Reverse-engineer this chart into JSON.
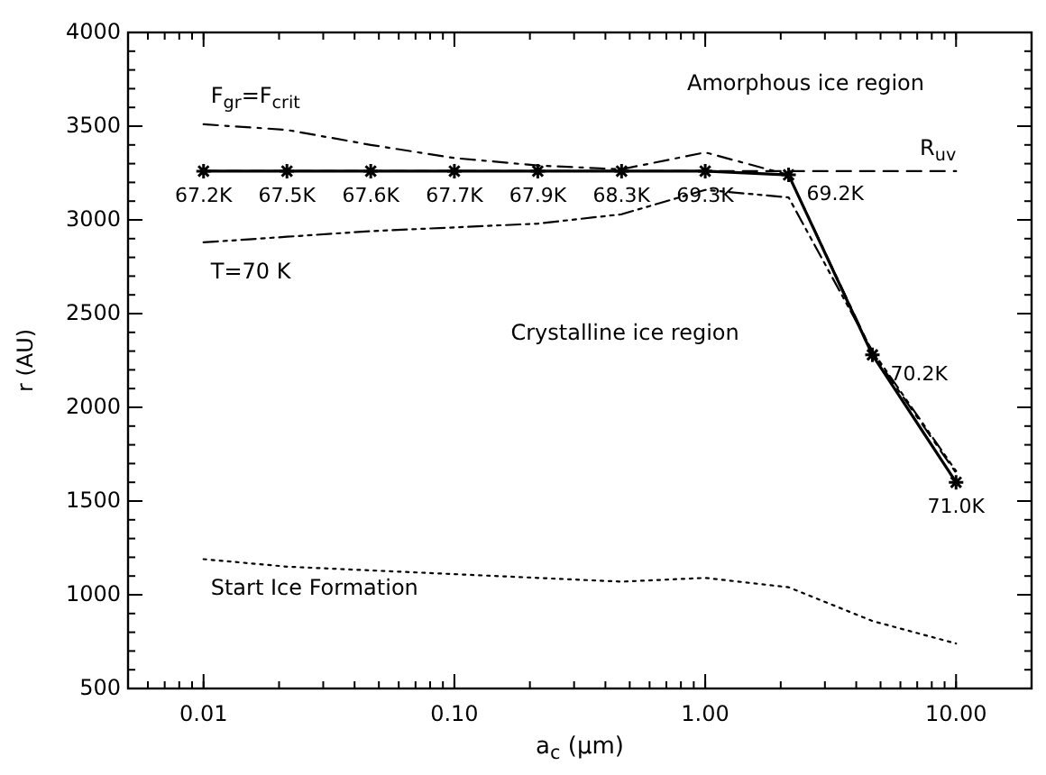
{
  "chart_data": {
    "type": "line",
    "xlabel": "a$_{c}$ (μm)",
    "ylabel": "r (AU)",
    "log": "x",
    "xlim": [
      0.005,
      20
    ],
    "xticks": [
      {
        "value": 0.01,
        "label": "0.01"
      },
      {
        "value": 0.1,
        "label": "0.10"
      },
      {
        "value": 1,
        "label": "1.00"
      },
      {
        "value": 10,
        "label": "10.00"
      }
    ],
    "ylim": [
      500,
      4000
    ],
    "yticks": [
      500,
      1000,
      1500,
      2000,
      2500,
      3000,
      3500,
      4000
    ],
    "grid": false,
    "x": [
      0.01,
      0.0215,
      0.0464,
      0.1,
      0.215,
      0.464,
      1,
      2.15,
      4.64,
      10
    ],
    "series": [
      {
        "color": "#000000",
        "line_style": "solid",
        "marker": "cross",
        "values": [
          3260,
          3260,
          3260,
          3260,
          3260,
          3260,
          3260,
          3240,
          2280,
          1600
        ]
      },
      {
        "name": "R$_{uv}$",
        "color": "#000000",
        "line_style": "dashed",
        "marker": "none",
        "values": [
          3260,
          3260,
          3260,
          3260,
          3260,
          3260,
          3260,
          3260,
          3260,
          3260
        ]
      },
      {
        "name": "F$_{gr}$=F$_{crit}$",
        "color": "#000000",
        "line_style": "dashdot",
        "marker": "none",
        "values": [
          3510,
          3480,
          3400,
          3330,
          3290,
          3270,
          3360,
          3240,
          2290,
          1650
        ]
      },
      {
        "name": "T=70 K",
        "color": "#000000",
        "line_style": "dashdotdot",
        "marker": "none",
        "values": [
          2880,
          2910,
          2940,
          2960,
          2980,
          3030,
          3160,
          3120,
          2300,
          1660
        ]
      },
      {
        "name": "Start Ice Formation",
        "color": "#000000",
        "line_style": "dotted",
        "marker": "none",
        "values": [
          1190,
          1150,
          1130,
          1110,
          1090,
          1070,
          1090,
          1040,
          860,
          740
        ]
      }
    ],
    "annotations": [
      "Amorphous ice region",
      "Crystalline ice region",
      {
        "text": "67.2K",
        "x": 0.01,
        "y": 3260
      },
      {
        "text": "67.5K",
        "x": 0.0215,
        "y": 3260
      },
      {
        "text": "67.6K",
        "x": 0.0464,
        "y": 3260
      },
      {
        "text": "67.7K",
        "x": 0.1,
        "y": 3260
      },
      {
        "text": "67.9K",
        "x": 0.215,
        "y": 3260
      },
      {
        "text": "68.3K",
        "x": 0.464,
        "y": 3260
      },
      {
        "text": "69.3K",
        "x": 1,
        "y": 3260
      },
      {
        "text": "69.2K",
        "x": 2.15,
        "y": 3240
      },
      {
        "text": "70.2K",
        "x": 4.64,
        "y": 2280
      },
      {
        "text": "71.0K",
        "x": 10,
        "y": 1600
      }
    ]
  }
}
